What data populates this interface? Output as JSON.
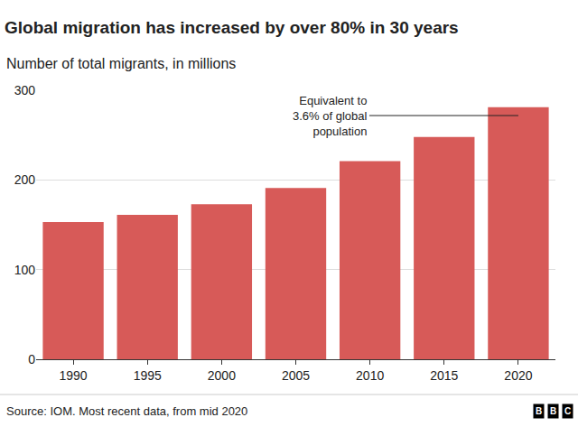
{
  "chart_data": {
    "type": "bar",
    "title": "Global migration has increased by over 80% in 30 years",
    "subtitle": "Number of total migrants, in millions",
    "categories": [
      "1990",
      "1995",
      "2000",
      "2005",
      "2010",
      "2015",
      "2020"
    ],
    "values": [
      153,
      161,
      173,
      191,
      221,
      248,
      281
    ],
    "color": "#d75a58",
    "ylim": [
      0,
      300
    ],
    "yticks": [
      0,
      100,
      200,
      300
    ],
    "grid": true,
    "annotations": [
      {
        "text": [
          "Equivalent to",
          "3.6% of global",
          "population"
        ],
        "x": "2020"
      }
    ],
    "source": "Source: IOM. Most recent data, from mid 2020",
    "logo": "BBC"
  }
}
